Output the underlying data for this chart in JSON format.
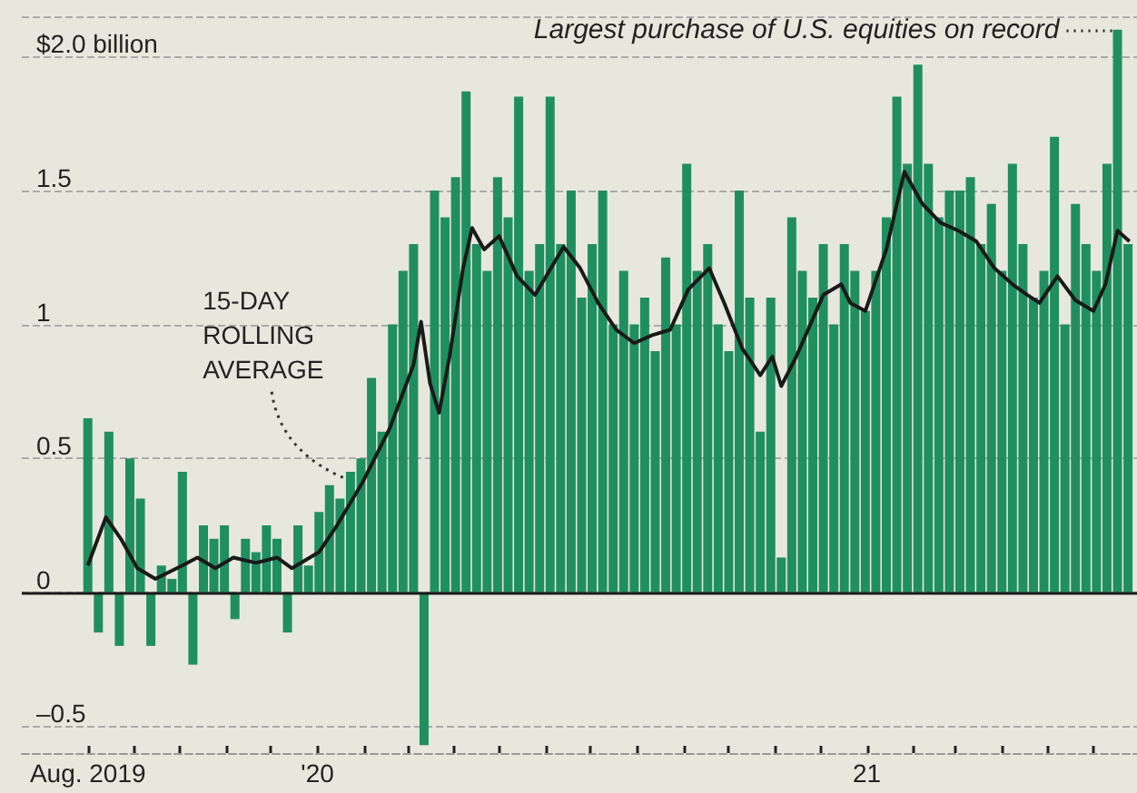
{
  "chart_data": {
    "type": "bar",
    "xlim": [
      "2019-06-18",
      "2021-06-30"
    ],
    "ylim": [
      -0.6,
      2.15
    ],
    "xticks": [
      {
        "value": "2019-08-01",
        "label": "Aug. 2019"
      },
      {
        "value": "2019-09-01",
        "label": null
      },
      {
        "value": "2019-10-01",
        "label": null
      },
      {
        "value": "2019-11-01",
        "label": null
      },
      {
        "value": "2019-12-01",
        "label": null
      },
      {
        "value": "2020-01-01",
        "label": "'20"
      },
      {
        "value": "2020-02-01",
        "label": null
      },
      {
        "value": "2020-03-01",
        "label": null
      },
      {
        "value": "2020-04-01",
        "label": null
      },
      {
        "value": "2020-05-01",
        "label": null
      },
      {
        "value": "2020-06-01",
        "label": null
      },
      {
        "value": "2020-07-01",
        "label": null
      },
      {
        "value": "2020-08-01",
        "label": null
      },
      {
        "value": "2020-09-01",
        "label": null
      },
      {
        "value": "2020-10-01",
        "label": null
      },
      {
        "value": "2020-11-01",
        "label": null
      },
      {
        "value": "2020-12-01",
        "label": null
      },
      {
        "value": "2021-01-01",
        "label": "21"
      },
      {
        "value": "2021-02-01",
        "label": null
      },
      {
        "value": "2021-03-01",
        "label": null
      },
      {
        "value": "2021-04-01",
        "label": null
      },
      {
        "value": "2021-05-01",
        "label": null
      },
      {
        "value": "2021-06-01",
        "label": null
      }
    ],
    "yticks": [
      {
        "value": -0.5,
        "label": "–0.5"
      },
      0,
      0.5,
      1.0,
      1.5,
      {
        "value": 2.0,
        "label": "$2.0 billion"
      }
    ],
    "grid": "y",
    "ref_lines": [
      {
        "axis": "y",
        "value": 0,
        "color": "#1a1a1a",
        "line_style": "solid"
      }
    ],
    "annotations": [
      {
        "text": "15-DAY\nROLLING\nAVERAGE",
        "x": "2020-01-31",
        "y": 0.41
      },
      {
        "text": "Largest purchase of U.S. equities on record",
        "x": "2021-06-17",
        "y": 2.1
      }
    ],
    "series": [
      {
        "type": "bar",
        "color": "#1f8f5f",
        "x": [
          "2019-08-01",
          "2019-08-08",
          "2019-08-15",
          "2019-08-22",
          "2019-08-29",
          "2019-09-05",
          "2019-09-12",
          "2019-09-19",
          "2019-09-26",
          "2019-10-03",
          "2019-10-10",
          "2019-10-17",
          "2019-10-24",
          "2019-10-31",
          "2019-11-07",
          "2019-11-14",
          "2019-11-21",
          "2019-11-28",
          "2019-12-05",
          "2019-12-12",
          "2019-12-19",
          "2019-12-26",
          "2020-01-02",
          "2020-01-09",
          "2020-01-16",
          "2020-01-23",
          "2020-01-30",
          "2020-02-06",
          "2020-02-13",
          "2020-02-20",
          "2020-02-27",
          "2020-03-05",
          "2020-03-12",
          "2020-03-19",
          "2020-03-26",
          "2020-04-02",
          "2020-04-09",
          "2020-04-16",
          "2020-04-23",
          "2020-04-30",
          "2020-05-07",
          "2020-05-14",
          "2020-05-21",
          "2020-05-28",
          "2020-06-04",
          "2020-06-11",
          "2020-06-18",
          "2020-06-25",
          "2020-07-02",
          "2020-07-09",
          "2020-07-16",
          "2020-07-23",
          "2020-07-30",
          "2020-08-06",
          "2020-08-13",
          "2020-08-20",
          "2020-08-27",
          "2020-09-03",
          "2020-09-10",
          "2020-09-17",
          "2020-09-24",
          "2020-10-01",
          "2020-10-08",
          "2020-10-15",
          "2020-10-22",
          "2020-10-29",
          "2020-11-05",
          "2020-11-12",
          "2020-11-19",
          "2020-11-26",
          "2020-12-03",
          "2020-12-10",
          "2020-12-17",
          "2020-12-24",
          "2020-12-31",
          "2021-01-07",
          "2021-01-14",
          "2021-01-21",
          "2021-01-28",
          "2021-02-04",
          "2021-02-11",
          "2021-02-18",
          "2021-02-25",
          "2021-03-04",
          "2021-03-11",
          "2021-03-18",
          "2021-03-25",
          "2021-04-01",
          "2021-04-08",
          "2021-04-15",
          "2021-04-22",
          "2021-04-29",
          "2021-05-06",
          "2021-05-13",
          "2021-05-20",
          "2021-05-27",
          "2021-06-03",
          "2021-06-10",
          "2021-06-17",
          "2021-06-24"
        ],
        "values": [
          0.65,
          -0.15,
          0.6,
          -0.2,
          0.5,
          0.35,
          -0.2,
          0.1,
          0.05,
          0.45,
          -0.27,
          0.25,
          0.2,
          0.25,
          -0.1,
          0.2,
          0.15,
          0.25,
          0.2,
          -0.15,
          0.25,
          0.1,
          0.3,
          0.4,
          0.35,
          0.45,
          0.5,
          0.8,
          0.6,
          1.0,
          1.2,
          1.3,
          -0.57,
          1.5,
          1.4,
          1.55,
          1.87,
          1.3,
          1.2,
          1.55,
          1.4,
          1.85,
          1.2,
          1.3,
          1.85,
          1.3,
          1.5,
          1.1,
          1.3,
          1.5,
          1.0,
          1.2,
          1.0,
          1.1,
          0.9,
          1.25,
          1.0,
          1.6,
          1.2,
          1.3,
          1.0,
          0.9,
          1.5,
          1.1,
          0.6,
          1.1,
          0.13,
          1.4,
          1.2,
          1.1,
          1.3,
          1.0,
          1.3,
          1.2,
          1.05,
          1.2,
          1.4,
          1.85,
          1.6,
          1.97,
          1.6,
          1.4,
          1.5,
          1.5,
          1.55,
          1.3,
          1.45,
          1.2,
          1.6,
          1.3,
          1.1,
          1.2,
          1.7,
          1.0,
          1.45,
          1.3,
          1.2,
          1.6,
          2.1,
          1.3
        ]
      },
      {
        "type": "line",
        "color": "#1a1a1a",
        "x": [
          "2019-08-01",
          "2019-08-13",
          "2019-08-23",
          "2019-09-03",
          "2019-09-15",
          "2019-10-03",
          "2019-10-13",
          "2019-10-25",
          "2019-11-06",
          "2019-11-21",
          "2019-12-05",
          "2019-12-15",
          "2020-01-02",
          "2020-01-14",
          "2020-01-31",
          "2020-02-18",
          "2020-03-05",
          "2020-03-10",
          "2020-03-16",
          "2020-03-22",
          "2020-03-29",
          "2020-04-07",
          "2020-04-13",
          "2020-04-21",
          "2020-05-01",
          "2020-05-13",
          "2020-05-25",
          "2020-06-13",
          "2020-06-24",
          "2020-07-06",
          "2020-07-18",
          "2020-07-30",
          "2020-08-11",
          "2020-08-23",
          "2020-09-04",
          "2020-09-18",
          "2020-09-28",
          "2020-10-10",
          "2020-10-22",
          "2020-10-30",
          "2020-11-05",
          "2020-11-15",
          "2020-12-03",
          "2020-12-15",
          "2020-12-21",
          "2020-12-31",
          "2021-01-14",
          "2021-01-26",
          "2021-02-07",
          "2021-02-19",
          "2021-03-03",
          "2021-03-15",
          "2021-03-27",
          "2021-04-08",
          "2021-04-18",
          "2021-04-26",
          "2021-05-08",
          "2021-05-20",
          "2021-06-01",
          "2021-06-09",
          "2021-06-17",
          "2021-06-25"
        ],
        "values": [
          0.1,
          0.28,
          0.2,
          0.09,
          0.05,
          0.1,
          0.13,
          0.09,
          0.13,
          0.11,
          0.13,
          0.09,
          0.15,
          0.25,
          0.41,
          0.61,
          0.85,
          1.01,
          0.78,
          0.67,
          0.88,
          1.21,
          1.36,
          1.28,
          1.33,
          1.18,
          1.11,
          1.29,
          1.21,
          1.08,
          0.98,
          0.93,
          0.96,
          0.98,
          1.13,
          1.21,
          1.08,
          0.91,
          0.81,
          0.88,
          0.77,
          0.88,
          1.11,
          1.15,
          1.08,
          1.05,
          1.28,
          1.57,
          1.45,
          1.38,
          1.35,
          1.31,
          1.21,
          1.15,
          1.11,
          1.08,
          1.18,
          1.09,
          1.05,
          1.15,
          1.35,
          1.31
        ]
      }
    ]
  }
}
